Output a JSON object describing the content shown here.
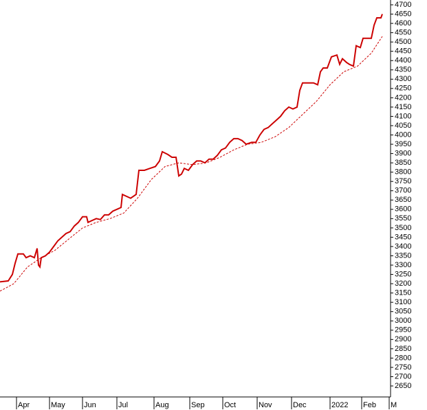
{
  "chart_data": {
    "type": "line",
    "series": [
      {
        "name": null,
        "color": "#cc0000",
        "dashed": false,
        "x": [
          0,
          12,
          18,
          22,
          26,
          34,
          38,
          44,
          50,
          54,
          56,
          58,
          60,
          66,
          72,
          78,
          84,
          90,
          96,
          102,
          108,
          114,
          120,
          126,
          128,
          134,
          140,
          146,
          152,
          158,
          164,
          170,
          176,
          178,
          184,
          190,
          198,
          202,
          210,
          218,
          226,
          232,
          236,
          244,
          250,
          256,
          260,
          264,
          268,
          274,
          280,
          286,
          292,
          298,
          304,
          310,
          316,
          322,
          328,
          334,
          340,
          346,
          352,
          358,
          366,
          372,
          378,
          384,
          390,
          396,
          402,
          408,
          414,
          420,
          426,
          432,
          436,
          440,
          448,
          456,
          462,
          466,
          470,
          476,
          482,
          490,
          494,
          498,
          504,
          508,
          514,
          518,
          524,
          528,
          534,
          540,
          544,
          548,
          554,
          556
        ],
        "values": [
          3210,
          3215,
          3250,
          3310,
          3360,
          3360,
          3340,
          3350,
          3340,
          3390,
          3300,
          3290,
          3340,
          3350,
          3370,
          3400,
          3430,
          3450,
          3470,
          3480,
          3510,
          3530,
          3560,
          3560,
          3530,
          3540,
          3550,
          3545,
          3570,
          3570,
          3590,
          3600,
          3610,
          3680,
          3670,
          3660,
          3680,
          3810,
          3810,
          3820,
          3830,
          3860,
          3910,
          3895,
          3880,
          3880,
          3780,
          3790,
          3820,
          3810,
          3840,
          3860,
          3860,
          3850,
          3870,
          3870,
          3890,
          3920,
          3930,
          3960,
          3980,
          3980,
          3970,
          3950,
          3960,
          3960,
          4000,
          4030,
          4040,
          4060,
          4080,
          4100,
          4130,
          4150,
          4140,
          4150,
          4240,
          4280,
          4280,
          4280,
          4270,
          4340,
          4360,
          4360,
          4420,
          4430,
          4380,
          4410,
          4390,
          4380,
          4370,
          4480,
          4470,
          4520,
          4520,
          4520,
          4590,
          4630,
          4630,
          4650
        ]
      },
      {
        "name": null,
        "color": "#cc0000",
        "dashed": true,
        "x": [
          0,
          20,
          40,
          60,
          80,
          100,
          120,
          140,
          160,
          180,
          200,
          220,
          240,
          260,
          280,
          300,
          320,
          340,
          360,
          380,
          400,
          420,
          440,
          460,
          480,
          500,
          520,
          540,
          556
        ],
        "values": [
          3160,
          3200,
          3290,
          3340,
          3380,
          3440,
          3500,
          3530,
          3550,
          3580,
          3660,
          3760,
          3830,
          3850,
          3840,
          3850,
          3880,
          3920,
          3950,
          3960,
          3990,
          4040,
          4110,
          4180,
          4270,
          4340,
          4370,
          4440,
          4530
        ]
      }
    ],
    "xlim": [
      0,
      568
    ],
    "xticks": [
      {
        "value": 24,
        "label": "Apr"
      },
      {
        "value": 72,
        "label": "May"
      },
      {
        "value": 120,
        "label": "Jun"
      },
      {
        "value": 170,
        "label": "Jul"
      },
      {
        "value": 224,
        "label": "Aug"
      },
      {
        "value": 276,
        "label": "Sep"
      },
      {
        "value": 324,
        "label": "Oct"
      },
      {
        "value": 374,
        "label": "Nov"
      },
      {
        "value": 424,
        "label": "Dec"
      },
      {
        "value": 480,
        "label": "2022"
      },
      {
        "value": 526,
        "label": "Feb"
      },
      {
        "value": 566,
        "label": "M"
      }
    ],
    "ylim": [
      2650,
      4700
    ],
    "yticks": [
      2650,
      2700,
      2750,
      2800,
      2850,
      2900,
      2950,
      3000,
      3050,
      3100,
      3150,
      3200,
      3250,
      3300,
      3350,
      3400,
      3450,
      3500,
      3550,
      3600,
      3650,
      3700,
      3750,
      3800,
      3850,
      3900,
      3950,
      4000,
      4050,
      4100,
      4150,
      4200,
      4250,
      4300,
      4350,
      4400,
      4450,
      4500,
      4550,
      4600,
      4650,
      4700
    ]
  }
}
